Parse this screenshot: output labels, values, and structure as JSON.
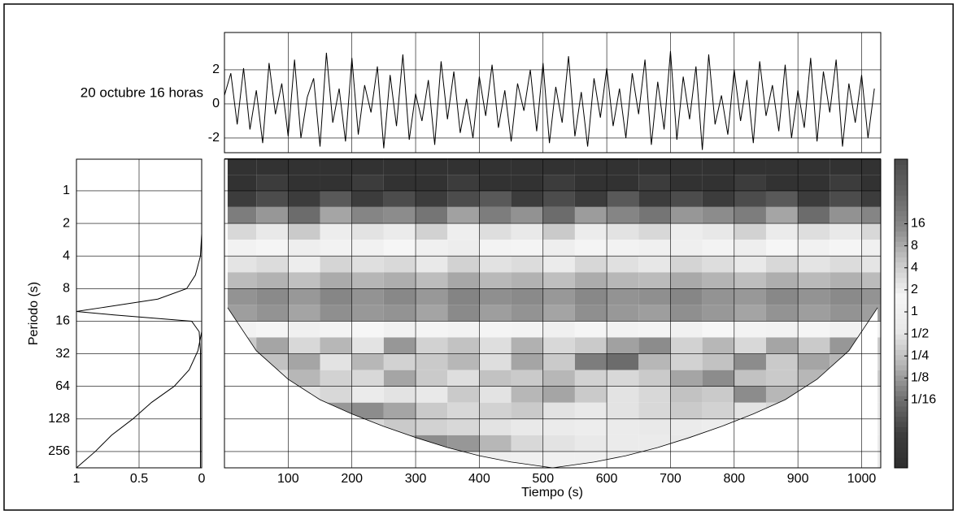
{
  "chart_data": [
    {
      "type": "line",
      "title": "20 octubre 16 horas",
      "x": [
        0,
        10,
        20,
        30,
        40,
        50,
        60,
        70,
        80,
        90,
        100,
        110,
        120,
        130,
        140,
        150,
        160,
        170,
        180,
        190,
        200,
        210,
        220,
        230,
        240,
        250,
        260,
        270,
        280,
        290,
        300,
        310,
        320,
        330,
        340,
        350,
        360,
        370,
        380,
        390,
        400,
        410,
        420,
        430,
        440,
        450,
        460,
        470,
        480,
        490,
        500,
        510,
        520,
        530,
        540,
        550,
        560,
        570,
        580,
        590,
        600,
        610,
        620,
        630,
        640,
        650,
        660,
        670,
        680,
        690,
        700,
        710,
        720,
        730,
        740,
        750,
        760,
        770,
        780,
        790,
        800,
        810,
        820,
        830,
        840,
        850,
        860,
        870,
        880,
        890,
        900,
        910,
        920,
        930,
        940,
        950,
        960,
        970,
        980,
        990,
        1000,
        1010,
        1020
      ],
      "values": [
        0.5,
        1.8,
        -1.2,
        2.1,
        -1.5,
        0.8,
        -2.3,
        2.4,
        -0.6,
        1.2,
        -1.9,
        2.6,
        -2.0,
        0.4,
        1.5,
        -2.5,
        3.0,
        -1.1,
        0.9,
        -2.2,
        2.7,
        -1.8,
        1.1,
        -0.5,
        2.2,
        -2.6,
        1.7,
        -1.3,
        2.9,
        -2.1,
        0.6,
        -1.0,
        1.4,
        -2.4,
        2.5,
        -0.9,
        1.9,
        -1.7,
        0.3,
        -2.0,
        1.6,
        -0.7,
        2.3,
        -1.4,
        0.8,
        -2.2,
        1.2,
        -0.4,
        2.0,
        -1.6,
        2.4,
        -2.3,
        1.0,
        -1.1,
        2.8,
        -1.9,
        0.7,
        -2.5,
        1.5,
        -0.8,
        2.1,
        -1.3,
        0.9,
        -2.0,
        1.8,
        -0.6,
        2.6,
        -2.4,
        1.3,
        -1.5,
        3.1,
        -2.1,
        1.6,
        -0.9,
        2.2,
        -2.7,
        2.9,
        -1.2,
        0.5,
        -1.8,
        2.0,
        -1.0,
        1.4,
        -2.3,
        2.5,
        -0.7,
        1.1,
        -1.6,
        2.3,
        -2.0,
        0.8,
        -1.4,
        2.7,
        -2.2,
        1.9,
        -0.5,
        2.6,
        -2.5,
        1.2,
        -1.1,
        1.7,
        -2.0,
        0.9
      ],
      "color": "#000000",
      "xlim": [
        0,
        1030
      ],
      "xticks": [
        100,
        200,
        300,
        400,
        500,
        600,
        700,
        800,
        900,
        1000
      ],
      "ylim": [
        -2.86,
        4.19
      ],
      "yticks": [
        -2,
        0,
        2
      ],
      "grid": true
    },
    {
      "type": "heatmap",
      "x_label": "Tiempo (s)",
      "y_label": "Periodo (s)",
      "time_edges": [
        0,
        50,
        100,
        150,
        200,
        250,
        300,
        350,
        400,
        450,
        500,
        550,
        600,
        650,
        700,
        750,
        800,
        850,
        900,
        950,
        1000,
        1030
      ],
      "period_edges": [
        0.5,
        0.71,
        1,
        1.41,
        2,
        2.83,
        4,
        5.66,
        8,
        11.3,
        16,
        22.6,
        32,
        45.3,
        64,
        90.5,
        128,
        181,
        256,
        362
      ],
      "power": [
        [
          0.01,
          0.01,
          0.01,
          0.01,
          0.01,
          0.01,
          0.01,
          0.01,
          0.01,
          0.01,
          0.01,
          0.01,
          0.01,
          0.01,
          0.01,
          0.01,
          0.01,
          0.01,
          0.01,
          0.01,
          0.01
        ],
        [
          0.01,
          0.02,
          0.01,
          0.01,
          0.02,
          0.01,
          0.01,
          0.02,
          0.01,
          0.01,
          0.02,
          0.01,
          0.01,
          0.02,
          0.01,
          0.01,
          0.02,
          0.01,
          0.01,
          0.02,
          0.01
        ],
        [
          0.02,
          0.03,
          0.02,
          0.04,
          0.02,
          0.03,
          0.02,
          0.03,
          0.04,
          0.02,
          0.03,
          0.02,
          0.04,
          0.02,
          0.03,
          0.02,
          0.03,
          0.04,
          0.02,
          0.03,
          0.02
        ],
        [
          0.08,
          0.12,
          0.06,
          0.15,
          0.09,
          0.1,
          0.07,
          0.14,
          0.08,
          0.11,
          0.06,
          0.13,
          0.09,
          0.07,
          0.12,
          0.1,
          0.08,
          0.15,
          0.06,
          0.11,
          0.09
        ],
        [
          0.4,
          0.6,
          0.3,
          0.8,
          0.5,
          0.7,
          0.35,
          0.9,
          0.45,
          0.6,
          0.3,
          0.75,
          0.5,
          0.4,
          0.8,
          0.55,
          0.35,
          0.7,
          0.45,
          0.6,
          0.4
        ],
        [
          1.2,
          1.5,
          0.9,
          1.8,
          1.1,
          1.6,
          1,
          2,
          1.3,
          1.4,
          0.9,
          1.7,
          1.2,
          1,
          1.9,
          1.3,
          0.9,
          1.6,
          1.1,
          1.5,
          1
        ],
        [
          2.5,
          3,
          2,
          3.5,
          2.8,
          3.2,
          2.2,
          3.8,
          2.6,
          3,
          2.1,
          3.4,
          2.7,
          2.3,
          3.6,
          2.9,
          2.2,
          3.3,
          2.5,
          3,
          2.4
        ],
        [
          6,
          7,
          5.5,
          8,
          6.5,
          7.5,
          5.8,
          8.5,
          6.2,
          7,
          5.6,
          7.8,
          6.4,
          6,
          8.2,
          6.8,
          5.7,
          7.6,
          6.1,
          7.2,
          6
        ],
        [
          12,
          14,
          11,
          16,
          12,
          15,
          11,
          17,
          13,
          14,
          11,
          15,
          12,
          13,
          16,
          12,
          11,
          15,
          12,
          14,
          12
        ],
        [
          10,
          12,
          9,
          13,
          11,
          12,
          9,
          14,
          10,
          12,
          9,
          13,
          11,
          10,
          13,
          11,
          9,
          12,
          10,
          12,
          10
        ],
        [
          1.2,
          1.5,
          1,
          1.3,
          1.6,
          1.1,
          1.4,
          1.2,
          1.7,
          1.3,
          1,
          1.5,
          1.2,
          1.4,
          1.1,
          1.6,
          1.3,
          1.2,
          1.5,
          1.1,
          1.3
        ],
        [
          0.3,
          0.15,
          0.4,
          0.2,
          0.5,
          0.12,
          0.35,
          0.25,
          0.45,
          0.18,
          0.4,
          0.3,
          0.14,
          0.1,
          0.35,
          0.2,
          0.4,
          0.15,
          0.3,
          0.12,
          0.3
        ],
        [
          0.4,
          0.25,
          0.15,
          0.5,
          0.2,
          0.35,
          0.3,
          0.2,
          0.45,
          0.15,
          0.3,
          0.08,
          0.06,
          0.2,
          0.35,
          0.25,
          0.1,
          0.3,
          0.15,
          0.2,
          0.4
        ],
        [
          0.3,
          0.5,
          0.2,
          0.35,
          0.4,
          0.15,
          0.3,
          0.45,
          0.25,
          0.3,
          0.2,
          0.35,
          0.4,
          0.3,
          0.15,
          0.1,
          0.25,
          0.3,
          0.2,
          0.35,
          0.3
        ],
        [
          0.6,
          0.8,
          0.5,
          0.4,
          0.7,
          0.5,
          0.6,
          0.3,
          0.5,
          0.2,
          0.15,
          0.3,
          0.5,
          0.4,
          0.25,
          0.3,
          0.1,
          0.2,
          0.35,
          0.5,
          0.6
        ],
        [
          0.5,
          0.4,
          0.3,
          0.12,
          0.1,
          0.15,
          0.3,
          0.4,
          0.35,
          0.3,
          0.5,
          0.6,
          0.5,
          0.4,
          0.3,
          0.35,
          0.5,
          0.4,
          0.3,
          0.5,
          0.6
        ],
        [
          0.8,
          0.7,
          0.6,
          0.5,
          0.4,
          0.3,
          0.35,
          0.4,
          0.5,
          0.6,
          0.7,
          0.8,
          0.7,
          0.6,
          0.7,
          0.8,
          0.7,
          0.6,
          0.7,
          0.8,
          0.8
        ],
        [
          0.7,
          0.6,
          0.5,
          0.3,
          0.2,
          0.15,
          0.1,
          0.12,
          0.2,
          0.4,
          0.5,
          0.6,
          0.7,
          0.7,
          0.6,
          0.5,
          0.6,
          0.7,
          0.7,
          0.6,
          0.7
        ],
        [
          0.8,
          0.7,
          0.6,
          0.5,
          0.5,
          0.6,
          0.7,
          0.8,
          0.9,
          1,
          1,
          1,
          1,
          0.9,
          0.8,
          0.7,
          0.6,
          0.6,
          0.7,
          0.8,
          0.8
        ]
      ],
      "coi_x": [
        5,
        50,
        100,
        150,
        200,
        250,
        300,
        350,
        400,
        450,
        515,
        580,
        630,
        680,
        730,
        780,
        830,
        880,
        930,
        980,
        1025
      ],
      "coi_period": [
        12,
        30,
        55,
        85,
        115,
        150,
        190,
        235,
        280,
        320,
        362,
        320,
        280,
        235,
        190,
        150,
        115,
        85,
        55,
        30,
        12
      ],
      "xlim": [
        0,
        1030
      ],
      "xticks": [
        100,
        200,
        300,
        400,
        500,
        600,
        700,
        800,
        900,
        1000
      ],
      "ylim": [
        362,
        0.51
      ],
      "y_scale": "log2",
      "yticks": [
        1,
        2,
        4,
        8,
        16,
        32,
        64,
        128,
        256
      ],
      "grid": true,
      "colormap": [
        "#2e2e2e",
        "#3d3d3d",
        "#6f6f6f",
        "#b4b4b4",
        "#e8e8e8",
        "#f6f6f6",
        "#c8c8c8",
        "#8a8a8a",
        "#666666",
        "#4a4a4a"
      ],
      "clim": [
        0.0074,
        122
      ],
      "cticks": [
        16,
        8,
        4,
        2,
        1,
        {
          "value": 0.5,
          "label": "1/2"
        },
        {
          "value": 0.25,
          "label": "1/4"
        },
        {
          "value": 0.125,
          "label": "1/8"
        },
        {
          "value": 0.0625,
          "label": "1/16"
        }
      ]
    },
    {
      "type": "global",
      "xlim": [
        1,
        0
      ],
      "xticks": [
        1,
        {
          "value": 0.5,
          "label": "0.5"
        },
        0
      ],
      "series": [
        {
          "color": "#000000",
          "periods": [
            2.5,
            4,
            6,
            8,
            10,
            12,
            13,
            14,
            16,
            20,
            30,
            64,
            128,
            256,
            362
          ],
          "values": [
            0,
            0.01,
            0.05,
            0.12,
            0.35,
            0.8,
            1,
            0.7,
            0.08,
            0.02,
            0.01,
            0.01,
            0.01,
            0.01,
            0.01
          ]
        },
        {
          "color": "#000000",
          "periods": [
            20,
            30,
            45,
            64,
            90,
            128,
            181,
            256,
            362
          ],
          "values": [
            0,
            0.03,
            0.1,
            0.22,
            0.4,
            0.55,
            0.72,
            0.85,
            1
          ]
        }
      ]
    }
  ]
}
